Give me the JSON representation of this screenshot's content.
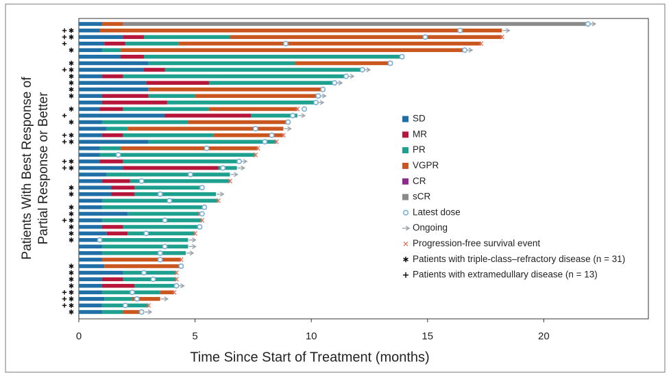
{
  "chart_data": {
    "type": "swimmer",
    "xlabel": "Time Since Start of Treatment (months)",
    "ylabel": [
      "Patients With Best Response of",
      "Partial Response or Better"
    ],
    "xlim": [
      0,
      24.5
    ],
    "xticks": [
      0,
      5,
      10,
      15,
      20
    ],
    "series": [
      {
        "name": "SD",
        "color": "#1f6fa6",
        "values": [
          1,
          0.9,
          1.9,
          1.1,
          1,
          1.8,
          3,
          2.8,
          1,
          2.9,
          3,
          1,
          1,
          0.9,
          3.7,
          1,
          1.2,
          1,
          3,
          0.9,
          0.9,
          0.9,
          1.9,
          1.2,
          1,
          1.4,
          1.4,
          1,
          1,
          2.1,
          1,
          1,
          1.2,
          0.9,
          1,
          1,
          1,
          1.1,
          1.9,
          1,
          1,
          1,
          1.1,
          1,
          1
        ]
      },
      {
        "name": "MR",
        "color": "#b5163a",
        "values": [
          null,
          null,
          0.9,
          0.9,
          null,
          1,
          null,
          0.9,
          0.9,
          2.7,
          null,
          2,
          2.8,
          1,
          3.7,
          null,
          null,
          0.9,
          null,
          null,
          null,
          1,
          4.1,
          null,
          1.2,
          1,
          1,
          null,
          null,
          null,
          null,
          0.9,
          0.9,
          null,
          null,
          null,
          null,
          null,
          null,
          0.9,
          1.4,
          null,
          null,
          null,
          null
        ]
      },
      {
        "name": "PR",
        "color": "#1ea08e",
        "values": [
          null,
          null,
          3.7,
          2.3,
          0.8,
          11.1,
          6.3,
          8.5,
          9.6,
          5.4,
          null,
          2,
          6.4,
          3.7,
          2,
          3.7,
          0.9,
          3.9,
          5.5,
          0.9,
          6.7,
          5,
          0.8,
          5.3,
          4.3,
          2.9,
          3.5,
          5,
          4.4,
          3.1,
          4.3,
          3.3,
          2.9,
          3.8,
          3.7,
          3.6,
          null,
          null,
          2.3,
          2.3,
          1.8,
          2.5,
          1.2,
          2,
          0.9
        ]
      },
      {
        "name": "VGPR",
        "color": "#c8561e",
        "values": [
          0.9,
          17.3,
          11.7,
          13,
          14.8,
          null,
          4.1,
          null,
          null,
          null,
          7.5,
          5.3,
          null,
          3.8,
          null,
          4.3,
          6.7,
          3,
          null,
          5.9,
          null,
          null,
          null,
          null,
          null,
          null,
          null,
          null,
          null,
          null,
          null,
          null,
          null,
          null,
          null,
          null,
          3.4,
          3.3,
          null,
          null,
          null,
          0.6,
          1.2,
          null,
          0.9
        ]
      },
      {
        "name": "CR",
        "color": "#8e2a8e",
        "values": [
          null,
          null,
          null,
          null,
          null,
          null,
          null,
          null,
          null,
          null,
          null,
          null,
          null,
          null,
          null,
          null,
          null,
          null,
          null,
          null,
          null,
          null,
          null,
          null,
          null,
          null,
          null,
          null,
          null,
          null,
          null,
          null,
          null,
          null,
          null,
          null,
          null,
          null,
          null,
          null,
          null,
          null,
          null,
          null,
          null
        ]
      },
      {
        "name": "sCR",
        "color": "#8a8a8a",
        "values": [
          20,
          null,
          null,
          null,
          null,
          null,
          null,
          null,
          null,
          null,
          null,
          null,
          null,
          null,
          null,
          null,
          null,
          null,
          null,
          null,
          null,
          null,
          null,
          null,
          null,
          null,
          null,
          null,
          null,
          null,
          null,
          null,
          null,
          null,
          null,
          null,
          null,
          null,
          null,
          null,
          null,
          null,
          null,
          null,
          null
        ]
      }
    ],
    "latest_dose": [
      21.9,
      16.4,
      14.9,
      8.9,
      16.6,
      13.9,
      13.4,
      12.2,
      11.5,
      11,
      10.5,
      10.3,
      10.2,
      9.7,
      9.2,
      9,
      7.6,
      8.3,
      8,
      5.5,
      1.7,
      6.9,
      6.2,
      4.8,
      2.7,
      5.3,
      3.5,
      3.9,
      5.4,
      5.3,
      3.7,
      5.2,
      2.9,
      0.9,
      3.7,
      3.5,
      3.5,
      4.4,
      2.8,
      3.2,
      4.2,
      2.3,
      2.5,
      2,
      2.7
    ],
    "ongoing": [
      true,
      true,
      false,
      false,
      true,
      false,
      false,
      true,
      true,
      true,
      false,
      true,
      true,
      false,
      true,
      false,
      true,
      false,
      false,
      false,
      false,
      true,
      true,
      true,
      false,
      false,
      true,
      false,
      false,
      false,
      false,
      false,
      false,
      true,
      true,
      true,
      false,
      false,
      false,
      false,
      true,
      false,
      true,
      false,
      true
    ],
    "triple_class_refractory": [
      false,
      true,
      true,
      false,
      true,
      false,
      true,
      true,
      true,
      true,
      true,
      true,
      false,
      true,
      false,
      true,
      false,
      true,
      true,
      false,
      false,
      true,
      true,
      false,
      false,
      true,
      true,
      false,
      true,
      true,
      true,
      true,
      true,
      true,
      false,
      false,
      false,
      true,
      true,
      true,
      true,
      true,
      true,
      true,
      true
    ],
    "extramedullary": [
      false,
      true,
      true,
      true,
      false,
      false,
      false,
      true,
      false,
      false,
      false,
      false,
      false,
      false,
      true,
      false,
      false,
      true,
      true,
      false,
      false,
      true,
      true,
      false,
      false,
      false,
      false,
      false,
      false,
      false,
      true,
      false,
      false,
      false,
      false,
      false,
      false,
      false,
      false,
      false,
      false,
      true,
      true,
      true,
      false
    ],
    "legend": {
      "latest_dose": "Latest dose",
      "ongoing": "Ongoing",
      "pfs_event": "Progression-free survival event",
      "triple_class_refractory": "Patients with triple-class–refractory disease (n = 31)",
      "extramedullary": "Patients with extramedullary disease (n = 13)"
    },
    "colors": {
      "latest_dose": "#7ab0d8",
      "ongoing": "#9aa3ab",
      "pfs_event": "#e0705c"
    }
  }
}
